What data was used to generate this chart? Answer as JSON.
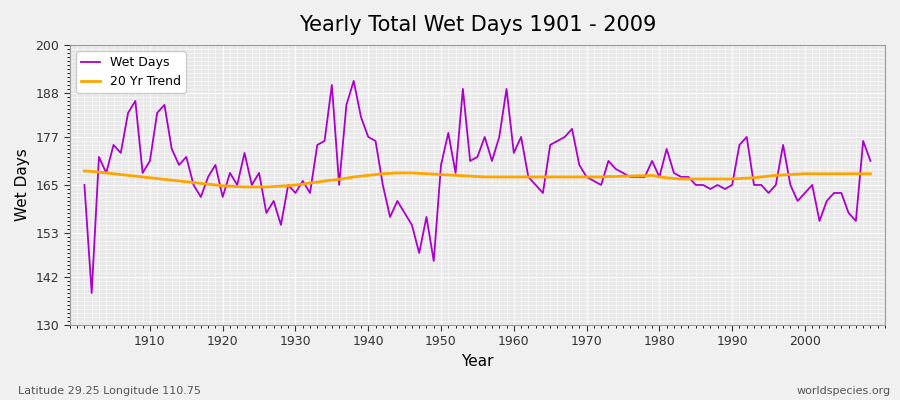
{
  "title": "Yearly Total Wet Days 1901 - 2009",
  "xlabel": "Year",
  "ylabel": "Wet Days",
  "subtitle": "Latitude 29.25 Longitude 110.75",
  "watermark": "worldspecies.org",
  "ylim": [
    130,
    200
  ],
  "yticks": [
    130,
    142,
    153,
    165,
    177,
    188,
    200
  ],
  "line_color": "#AA00CC",
  "trend_color": "#FFA500",
  "bg_color": "#E8E8E8",
  "fig_color": "#F0F0F0",
  "years": [
    1901,
    1902,
    1903,
    1904,
    1905,
    1906,
    1907,
    1908,
    1909,
    1910,
    1911,
    1912,
    1913,
    1914,
    1915,
    1916,
    1917,
    1918,
    1919,
    1920,
    1921,
    1922,
    1923,
    1924,
    1925,
    1926,
    1927,
    1928,
    1929,
    1930,
    1931,
    1932,
    1933,
    1934,
    1935,
    1936,
    1937,
    1938,
    1939,
    1940,
    1941,
    1942,
    1943,
    1944,
    1945,
    1946,
    1947,
    1948,
    1949,
    1950,
    1951,
    1952,
    1953,
    1954,
    1955,
    1956,
    1957,
    1958,
    1959,
    1960,
    1961,
    1962,
    1963,
    1964,
    1965,
    1966,
    1967,
    1968,
    1969,
    1970,
    1971,
    1972,
    1973,
    1974,
    1975,
    1976,
    1977,
    1978,
    1979,
    1980,
    1981,
    1982,
    1983,
    1984,
    1985,
    1986,
    1987,
    1988,
    1989,
    1990,
    1991,
    1992,
    1993,
    1994,
    1995,
    1996,
    1997,
    1998,
    1999,
    2000,
    2001,
    2002,
    2003,
    2004,
    2005,
    2006,
    2007,
    2008,
    2009
  ],
  "wet_days": [
    165,
    138,
    172,
    168,
    175,
    173,
    183,
    186,
    168,
    171,
    183,
    185,
    174,
    170,
    172,
    165,
    162,
    167,
    170,
    162,
    168,
    165,
    173,
    165,
    168,
    158,
    161,
    155,
    165,
    163,
    166,
    163,
    175,
    176,
    190,
    165,
    185,
    191,
    182,
    177,
    176,
    165,
    157,
    161,
    158,
    155,
    148,
    157,
    146,
    170,
    178,
    168,
    189,
    171,
    172,
    177,
    171,
    177,
    189,
    173,
    177,
    167,
    165,
    163,
    175,
    176,
    177,
    179,
    170,
    167,
    166,
    165,
    171,
    169,
    168,
    167,
    167,
    167,
    171,
    167,
    174,
    168,
    167,
    167,
    165,
    165,
    164,
    165,
    164,
    165,
    175,
    177,
    165,
    165,
    163,
    165,
    175,
    165,
    161,
    163,
    165,
    156,
    161,
    163,
    163,
    158,
    156,
    176,
    171
  ],
  "trend": [
    168.5,
    168.4,
    168.2,
    168.0,
    167.8,
    167.6,
    167.4,
    167.2,
    167.0,
    166.8,
    166.6,
    166.4,
    166.2,
    166.0,
    165.8,
    165.6,
    165.4,
    165.2,
    165.0,
    164.8,
    164.7,
    164.6,
    164.5,
    164.5,
    164.5,
    164.5,
    164.6,
    164.7,
    164.8,
    165.0,
    165.2,
    165.5,
    165.7,
    166.0,
    166.2,
    166.4,
    166.7,
    167.0,
    167.2,
    167.4,
    167.6,
    167.8,
    167.9,
    168.0,
    168.0,
    168.0,
    167.9,
    167.8,
    167.7,
    167.6,
    167.5,
    167.4,
    167.3,
    167.2,
    167.1,
    167.0,
    167.0,
    167.0,
    167.0,
    167.0,
    167.0,
    167.0,
    167.0,
    167.0,
    167.0,
    167.0,
    167.0,
    167.0,
    167.0,
    167.0,
    167.0,
    167.0,
    167.1,
    167.1,
    167.2,
    167.2,
    167.3,
    167.3,
    167.4,
    167.0,
    166.8,
    166.6,
    166.5,
    166.5,
    166.5,
    166.5,
    166.5,
    166.5,
    166.5,
    166.5,
    166.6,
    166.7,
    166.8,
    167.0,
    167.2,
    167.4,
    167.5,
    167.6,
    167.7,
    167.8,
    167.8,
    167.8,
    167.8,
    167.8,
    167.8,
    167.8,
    167.8,
    167.8,
    167.8
  ]
}
